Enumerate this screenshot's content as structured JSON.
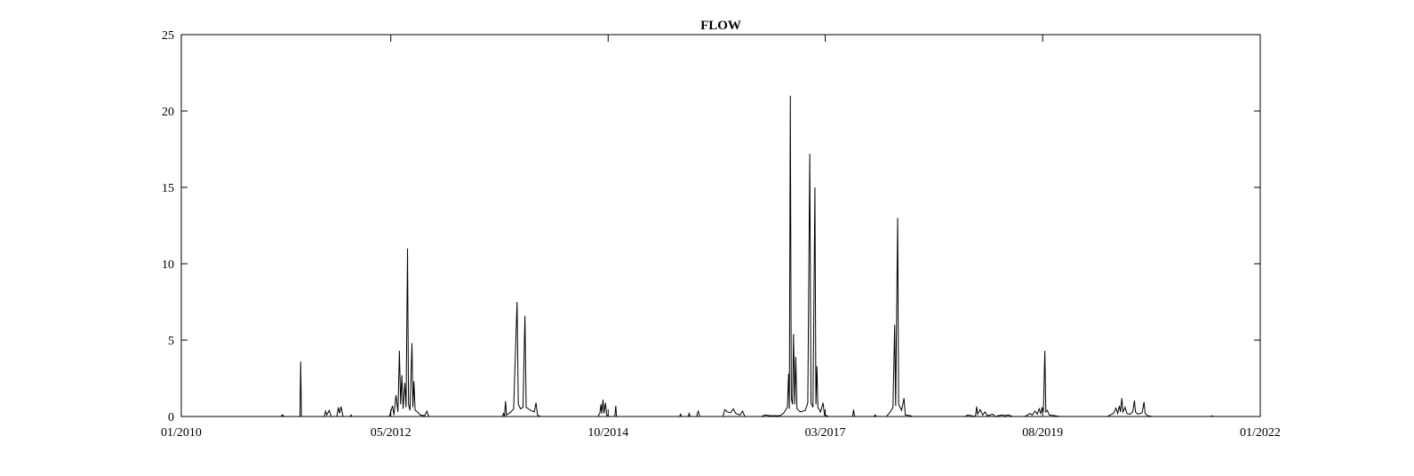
{
  "chart_data": {
    "type": "line",
    "title": "FLOW",
    "xlabel": "",
    "ylabel": "",
    "xlim": [
      "2010-01",
      "2022-01"
    ],
    "ylim": [
      0,
      25
    ],
    "x_tick_labels": [
      "01/2010",
      "05/2012",
      "10/2014",
      "03/2017",
      "08/2019",
      "01/2022"
    ],
    "y_tick_labels": [
      "0",
      "5",
      "10",
      "15",
      "20",
      "25"
    ],
    "grid": false,
    "series": [
      {
        "color": "#000000",
        "points": [
          [
            "2010-01-01",
            0
          ],
          [
            "2011-02-10",
            0
          ],
          [
            "2011-02-16",
            0.12
          ],
          [
            "2011-02-22",
            0
          ],
          [
            "2011-04-28",
            0
          ],
          [
            "2011-05-01",
            3.6
          ],
          [
            "2011-05-04",
            0
          ],
          [
            "2011-08-05",
            0
          ],
          [
            "2011-08-10",
            0.35
          ],
          [
            "2011-08-15",
            0.1
          ],
          [
            "2011-08-25",
            0.4
          ],
          [
            "2011-09-02",
            0
          ],
          [
            "2011-09-25",
            0
          ],
          [
            "2011-10-01",
            0.6
          ],
          [
            "2011-10-06",
            0.2
          ],
          [
            "2011-10-12",
            0.65
          ],
          [
            "2011-10-20",
            0
          ],
          [
            "2011-11-18",
            0
          ],
          [
            "2011-11-22",
            0.1
          ],
          [
            "2011-11-26",
            0
          ],
          [
            "2012-04-25",
            0
          ],
          [
            "2012-05-08",
            0.7
          ],
          [
            "2012-05-14",
            0.1
          ],
          [
            "2012-05-22",
            1.4
          ],
          [
            "2012-05-30",
            0.3
          ],
          [
            "2012-06-05",
            4.3
          ],
          [
            "2012-06-10",
            0.8
          ],
          [
            "2012-06-15",
            2.7
          ],
          [
            "2012-06-20",
            0.5
          ],
          [
            "2012-06-27",
            2.2
          ],
          [
            "2012-07-02",
            0.6
          ],
          [
            "2012-07-08",
            11.0
          ],
          [
            "2012-07-12",
            0.8
          ],
          [
            "2012-07-18",
            0.4
          ],
          [
            "2012-07-26",
            4.8
          ],
          [
            "2012-07-30",
            0.6
          ],
          [
            "2012-08-03",
            2.3
          ],
          [
            "2012-08-08",
            0.4
          ],
          [
            "2012-08-18",
            0.3
          ],
          [
            "2012-08-28",
            0.1
          ],
          [
            "2012-09-15",
            0.05
          ],
          [
            "2012-09-25",
            0.35
          ],
          [
            "2012-10-02",
            0
          ],
          [
            "2013-07-28",
            0
          ],
          [
            "2013-08-02",
            0.2
          ],
          [
            "2013-08-06",
            0
          ],
          [
            "2013-08-10",
            1.0
          ],
          [
            "2013-08-14",
            0.1
          ],
          [
            "2013-09-01",
            0.3
          ],
          [
            "2013-09-12",
            0.5
          ],
          [
            "2013-09-26",
            7.5
          ],
          [
            "2013-10-01",
            0.8
          ],
          [
            "2013-10-10",
            0.5
          ],
          [
            "2013-10-20",
            0.6
          ],
          [
            "2013-10-28",
            6.6
          ],
          [
            "2013-11-02",
            0.6
          ],
          [
            "2013-11-20",
            0.4
          ],
          [
            "2013-12-05",
            0.3
          ],
          [
            "2013-12-12",
            0.9
          ],
          [
            "2013-12-18",
            0.1
          ],
          [
            "2013-12-30",
            0
          ],
          [
            "2014-08-20",
            0
          ],
          [
            "2014-08-28",
            0.2
          ],
          [
            "2014-09-02",
            0.8
          ],
          [
            "2014-09-05",
            0.2
          ],
          [
            "2014-09-10",
            1.1
          ],
          [
            "2014-09-14",
            0.2
          ],
          [
            "2014-09-20",
            0.9
          ],
          [
            "2014-09-25",
            0.1
          ],
          [
            "2014-10-05",
            0
          ],
          [
            "2014-10-28",
            0
          ],
          [
            "2014-11-01",
            0.7
          ],
          [
            "2014-11-04",
            0
          ],
          [
            "2015-07-18",
            0
          ],
          [
            "2015-07-22",
            0.15
          ],
          [
            "2015-07-26",
            0
          ],
          [
            "2015-08-22",
            0
          ],
          [
            "2015-08-26",
            0.2
          ],
          [
            "2015-08-30",
            0
          ],
          [
            "2015-09-25",
            0
          ],
          [
            "2015-10-02",
            0.35
          ],
          [
            "2015-10-08",
            0
          ],
          [
            "2016-01-10",
            0
          ],
          [
            "2016-01-18",
            0.45
          ],
          [
            "2016-01-28",
            0.3
          ],
          [
            "2016-02-10",
            0.25
          ],
          [
            "2016-02-22",
            0.5
          ],
          [
            "2016-03-02",
            0.2
          ],
          [
            "2016-03-20",
            0.1
          ],
          [
            "2016-03-30",
            0.35
          ],
          [
            "2016-04-08",
            0
          ],
          [
            "2016-06-15",
            0
          ],
          [
            "2016-07-01",
            0.1
          ],
          [
            "2016-07-20",
            0.05
          ],
          [
            "2016-08-28",
            0.05
          ],
          [
            "2016-09-12",
            0.2
          ],
          [
            "2016-09-20",
            0.4
          ],
          [
            "2016-09-28",
            0.6
          ],
          [
            "2016-10-03",
            2.8
          ],
          [
            "2016-10-06",
            0.5
          ],
          [
            "2016-10-10",
            21.0
          ],
          [
            "2016-10-14",
            1.2
          ],
          [
            "2016-10-19",
            0.8
          ],
          [
            "2016-10-23",
            5.4
          ],
          [
            "2016-10-28",
            0.8
          ],
          [
            "2016-11-01",
            3.9
          ],
          [
            "2016-11-06",
            0.5
          ],
          [
            "2016-11-20",
            0.3
          ],
          [
            "2016-12-10",
            0.4
          ],
          [
            "2016-12-20",
            0.9
          ],
          [
            "2016-12-28",
            17.2
          ],
          [
            "2017-01-02",
            0.9
          ],
          [
            "2017-01-10",
            0.6
          ],
          [
            "2017-01-18",
            15.0
          ],
          [
            "2017-01-22",
            0.8
          ],
          [
            "2017-01-26",
            3.3
          ],
          [
            "2017-01-30",
            0.6
          ],
          [
            "2017-02-10",
            0.3
          ],
          [
            "2017-02-20",
            0.9
          ],
          [
            "2017-02-26",
            0.1
          ],
          [
            "2017-03-15",
            0
          ],
          [
            "2017-06-20",
            0
          ],
          [
            "2017-06-24",
            0.45
          ],
          [
            "2017-06-28",
            0
          ],
          [
            "2017-09-15",
            0
          ],
          [
            "2017-09-20",
            0.1
          ],
          [
            "2017-09-24",
            0
          ],
          [
            "2017-11-05",
            0
          ],
          [
            "2017-11-20",
            0.3
          ],
          [
            "2017-12-01",
            0.6
          ],
          [
            "2017-12-08",
            6.0
          ],
          [
            "2017-12-12",
            0.7
          ],
          [
            "2017-12-20",
            13.0
          ],
          [
            "2017-12-24",
            0.8
          ],
          [
            "2018-01-05",
            0.4
          ],
          [
            "2018-01-15",
            1.2
          ],
          [
            "2018-01-20",
            0.1
          ],
          [
            "2018-02-10",
            0.05
          ],
          [
            "2018-02-20",
            0
          ],
          [
            "2018-09-20",
            0
          ],
          [
            "2018-10-01",
            0.1
          ],
          [
            "2018-10-15",
            0.05
          ],
          [
            "2018-11-01",
            0
          ],
          [
            "2018-11-06",
            0.65
          ],
          [
            "2018-11-10",
            0.15
          ],
          [
            "2018-11-20",
            0.45
          ],
          [
            "2018-12-01",
            0.1
          ],
          [
            "2018-12-10",
            0.3
          ],
          [
            "2018-12-20",
            0.05
          ],
          [
            "2019-01-10",
            0.15
          ],
          [
            "2019-01-20",
            0
          ],
          [
            "2019-02-15",
            0.1
          ],
          [
            "2019-03-01",
            0.05
          ],
          [
            "2019-03-15",
            0.1
          ],
          [
            "2019-04-01",
            0
          ],
          [
            "2019-05-20",
            0
          ],
          [
            "2019-06-01",
            0.1
          ],
          [
            "2019-06-10",
            0.2
          ],
          [
            "2019-06-20",
            0.1
          ],
          [
            "2019-07-01",
            0.35
          ],
          [
            "2019-07-10",
            0.15
          ],
          [
            "2019-07-18",
            0.5
          ],
          [
            "2019-07-24",
            0.2
          ],
          [
            "2019-07-30",
            0.6
          ],
          [
            "2019-08-04",
            0.3
          ],
          [
            "2019-08-10",
            4.3
          ],
          [
            "2019-08-14",
            0.3
          ],
          [
            "2019-08-20",
            0.4
          ],
          [
            "2019-08-28",
            0.1
          ],
          [
            "2019-09-20",
            0.05
          ],
          [
            "2019-10-10",
            0
          ],
          [
            "2020-04-20",
            0
          ],
          [
            "2020-05-01",
            0.1
          ],
          [
            "2020-05-15",
            0.2
          ],
          [
            "2020-05-25",
            0.55
          ],
          [
            "2020-06-01",
            0.2
          ],
          [
            "2020-06-08",
            0.7
          ],
          [
            "2020-06-12",
            0.3
          ],
          [
            "2020-06-18",
            1.2
          ],
          [
            "2020-06-22",
            0.3
          ],
          [
            "2020-07-01",
            0.6
          ],
          [
            "2020-07-08",
            0.2
          ],
          [
            "2020-07-20",
            0.15
          ],
          [
            "2020-08-01",
            0.3
          ],
          [
            "2020-08-08",
            1.05
          ],
          [
            "2020-08-12",
            0.3
          ],
          [
            "2020-08-22",
            0.15
          ],
          [
            "2020-09-08",
            0.25
          ],
          [
            "2020-09-16",
            0.95
          ],
          [
            "2020-09-20",
            0.2
          ],
          [
            "2020-10-01",
            0.05
          ],
          [
            "2020-10-20",
            0
          ],
          [
            "2021-06-15",
            0
          ],
          [
            "2021-06-20",
            0.05
          ],
          [
            "2021-06-25",
            0
          ],
          [
            "2022-01-01",
            0
          ]
        ]
      }
    ]
  }
}
